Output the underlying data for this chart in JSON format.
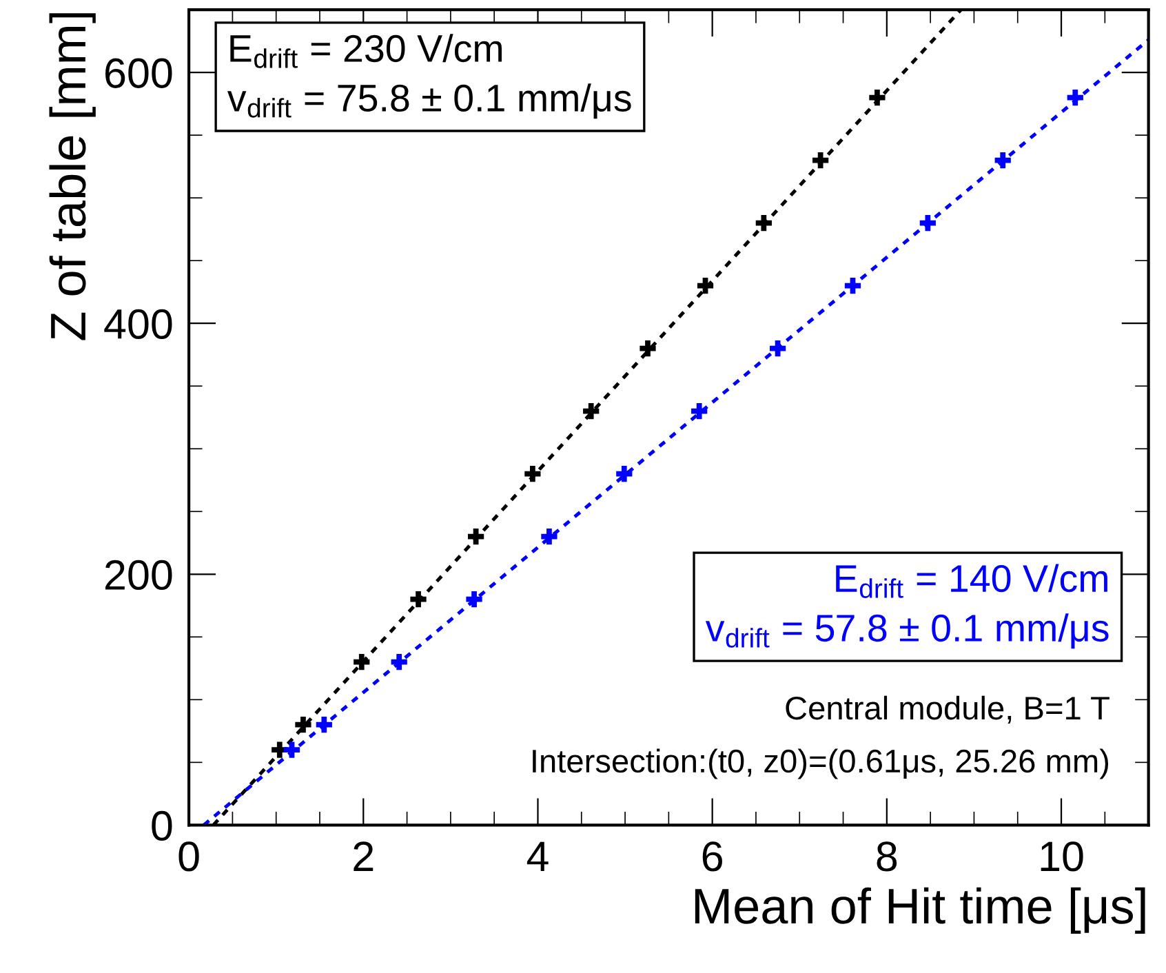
{
  "chart_data": {
    "type": "scatter",
    "xlabel": "Mean of Hit time [μs]",
    "ylabel": "Z of table [mm]",
    "xlim": [
      0,
      11
    ],
    "ylim": [
      0,
      650
    ],
    "xticks": [
      0,
      2,
      4,
      6,
      8,
      10
    ],
    "yticks": [
      0,
      200,
      400,
      600
    ],
    "grid": false,
    "legend": false,
    "marker": "cross",
    "series": [
      {
        "color": "#000000",
        "x": [
          1.04,
          1.31,
          1.98,
          2.63,
          3.29,
          3.94,
          4.61,
          5.26,
          5.92,
          6.59,
          7.24,
          7.89
        ],
        "values": [
          60,
          80,
          130,
          180,
          230,
          280,
          330,
          380,
          430,
          480,
          530,
          580
        ]
      },
      {
        "color": "#0000ff",
        "x": [
          1.18,
          1.55,
          2.41,
          3.27,
          4.13,
          4.99,
          5.85,
          6.75,
          7.61,
          8.47,
          9.33,
          10.16
        ],
        "values": [
          60,
          80,
          130,
          180,
          230,
          280,
          330,
          380,
          430,
          480,
          530,
          580
        ]
      },
      {
        "type": "line",
        "marker": "none",
        "color": "#000000",
        "line_style": "dotted",
        "x": [
          0.28,
          8.85
        ],
        "values": [
          0,
          650
        ]
      },
      {
        "type": "line",
        "marker": "none",
        "color": "#0000ff",
        "line_style": "dotted",
        "x": [
          0.17,
          11
        ],
        "values": [
          0,
          626
        ]
      }
    ],
    "annotations": [
      "E$_{drift}$ = 230 V/cm\nv$_{drift}$ = 75.8 ± 0.1 mm/μs",
      "E$_{drift}$ = 140 V/cm\nv$_{drift}$ = 57.8 ± 0.1 mm/μs",
      "Central module, B=1 T",
      "Intersection:(t0, z0)=(0.61μs, 25.26 mm)"
    ]
  }
}
